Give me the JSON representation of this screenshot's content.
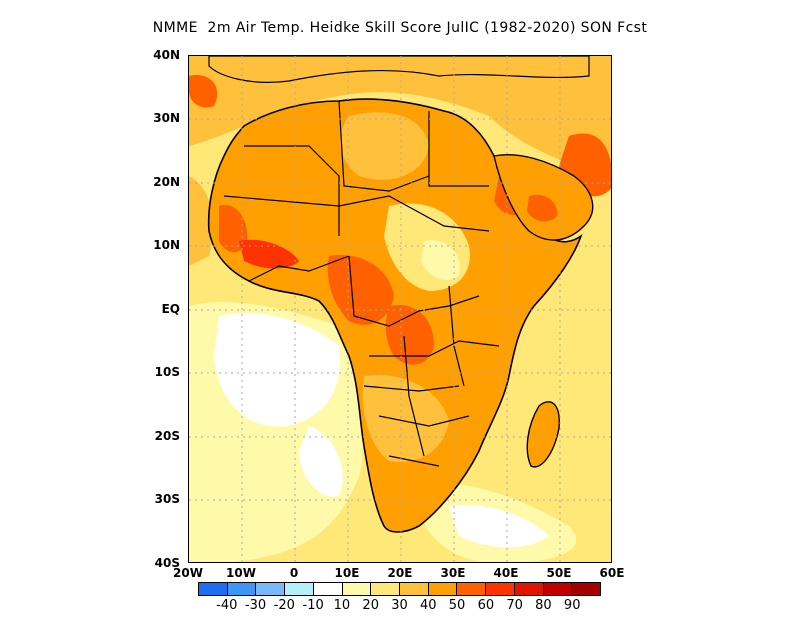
{
  "title": "NMME  2m Air Temp. Heidke Skill Score JulIC (1982-2020) SON Fcst",
  "lat_labels": [
    "40N",
    "30N",
    "20N",
    "10N",
    "EQ",
    "10S",
    "20S",
    "30S",
    "40S"
  ],
  "lon_labels": [
    "20W",
    "10W",
    "0",
    "10E",
    "20E",
    "30E",
    "40E",
    "50E",
    "60E"
  ],
  "colorbar": {
    "colors": [
      "#1e6ff0",
      "#3c96f5",
      "#78b9fa",
      "#b4f0fa",
      "#ffffff",
      "#fffaaa",
      "#ffe878",
      "#ffc03c",
      "#ffa000",
      "#ff6000",
      "#ff3200",
      "#e11400",
      "#c00000",
      "#a50000"
    ],
    "labels": [
      "-40",
      "-30",
      "-20",
      "-10",
      "10",
      "20",
      "30",
      "40",
      "50",
      "60",
      "70",
      "80",
      "90"
    ]
  }
}
